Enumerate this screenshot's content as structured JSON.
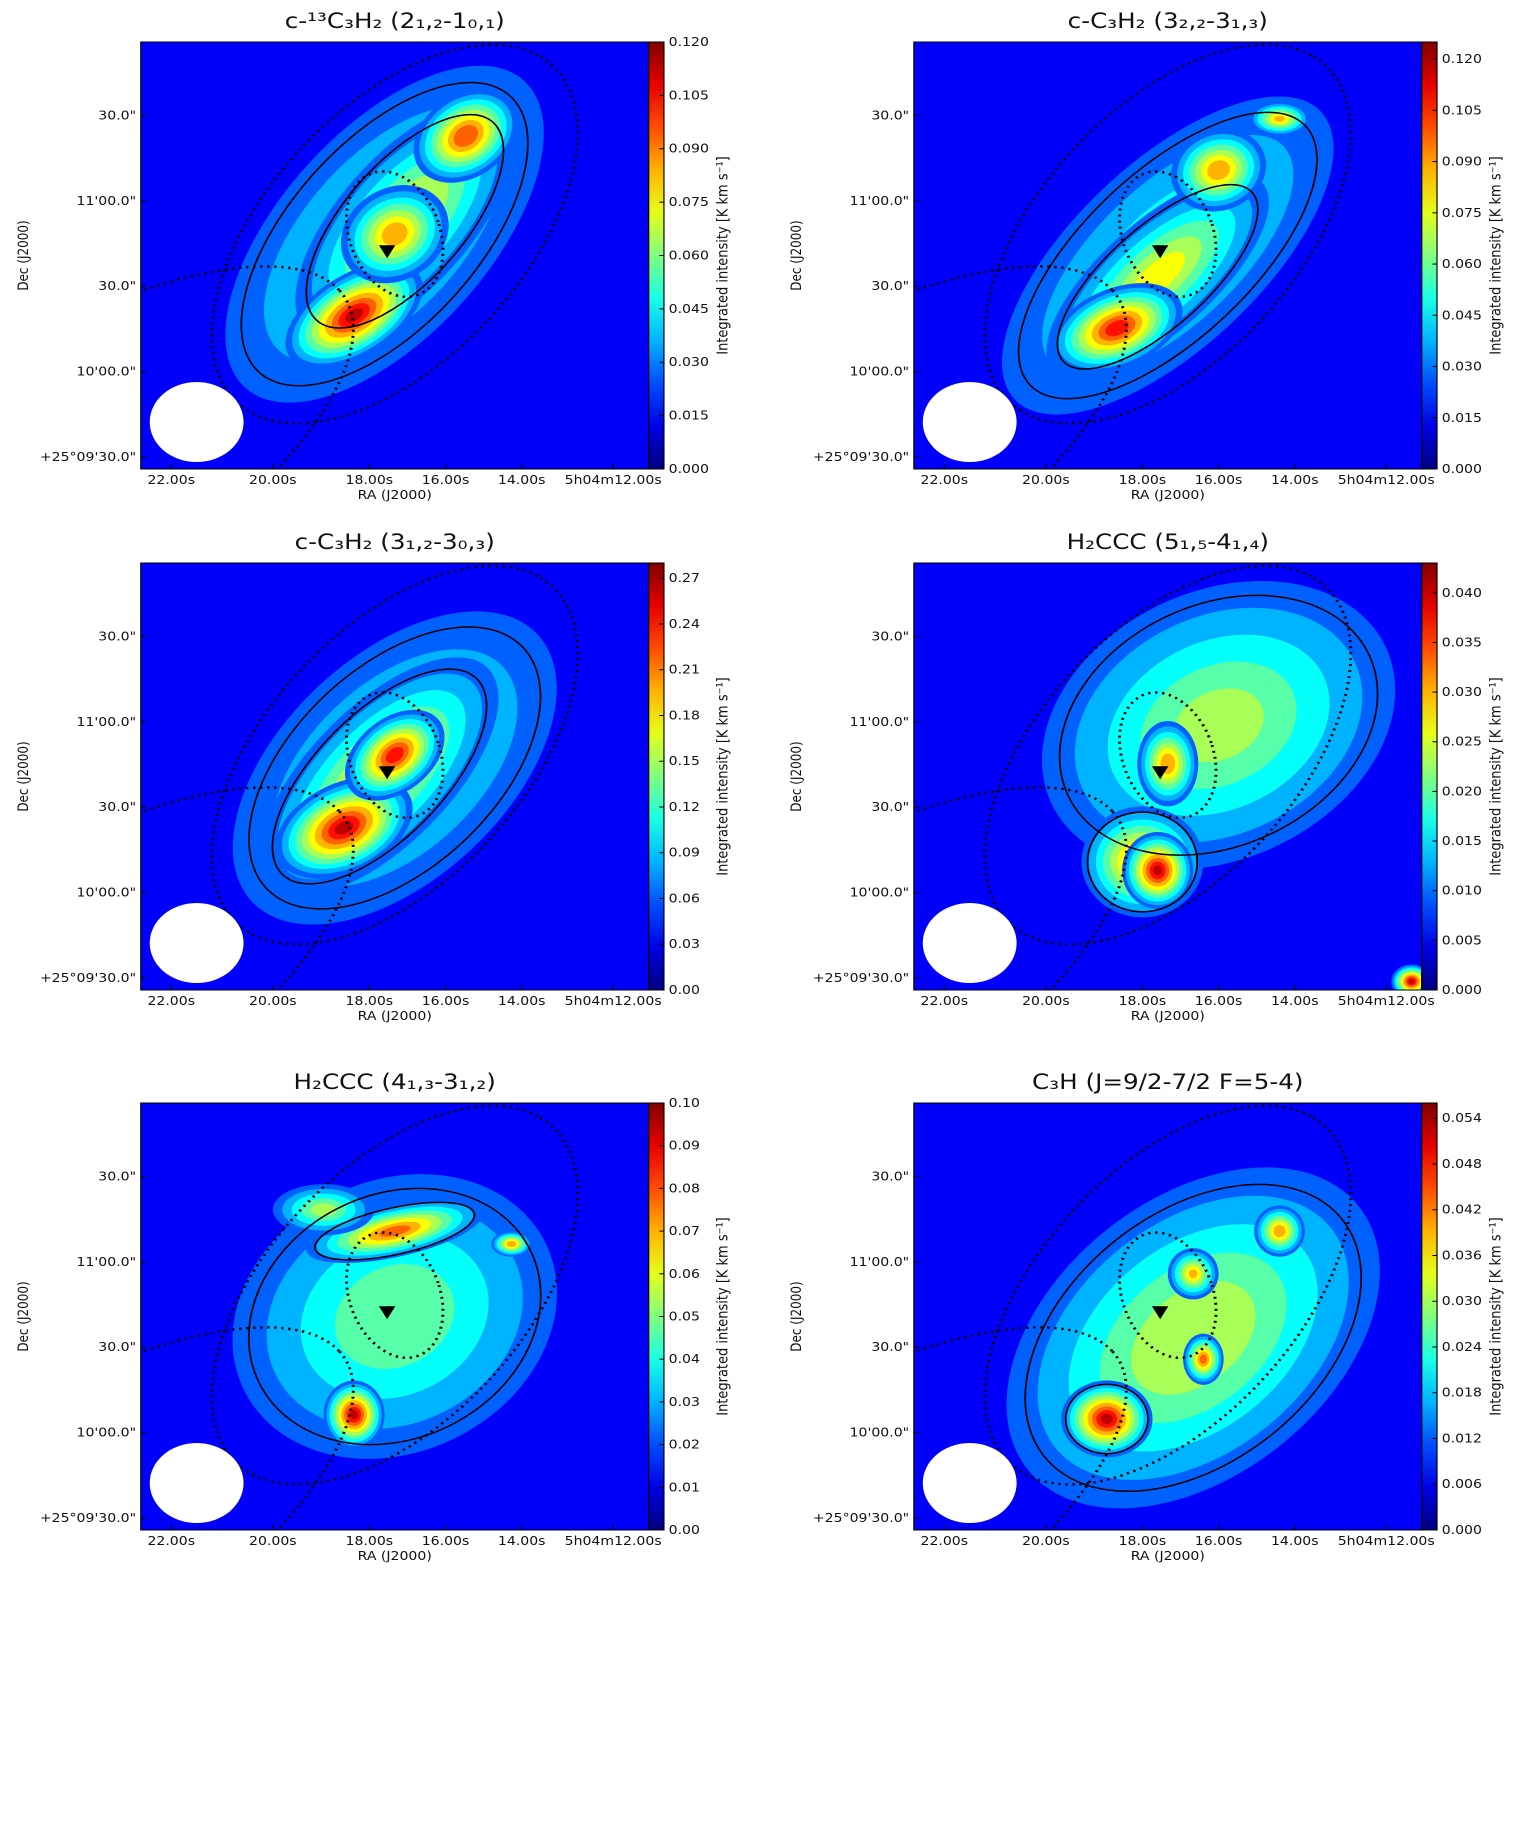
{
  "chart_data": [
    {
      "type": "heatmap",
      "title": "c-¹³C₃H₂ (2₁,₂-1₀,₁)",
      "xlabel": "RA (J2000)",
      "ylabel": "Dec (J2000)",
      "xticks": [
        "22.00s",
        "20.00s",
        "18.00s",
        "16.00s",
        "14.00s",
        "5h04m12.00s"
      ],
      "yticks": [
        "+25°09'30.0\"",
        "10'00.0\"",
        "30.0\"",
        "11'00.0\"",
        "30.0\""
      ],
      "colorbar_label": "Integrated intensity [K km s⁻¹]",
      "clim": [
        0,
        0.12
      ],
      "cticks": [
        {
          "value": 0,
          "label": "0.000"
        },
        {
          "value": 0.015,
          "label": "0.015"
        },
        {
          "value": 0.03,
          "label": "0.030"
        },
        {
          "value": 0.045,
          "label": "0.045"
        },
        {
          "value": 0.06,
          "label": "0.060"
        },
        {
          "value": 0.075,
          "label": "0.075"
        },
        {
          "value": 0.09,
          "label": "0.090"
        },
        {
          "value": 0.105,
          "label": "0.105"
        },
        {
          "value": 0.12,
          "label": "0.120"
        }
      ]
    },
    {
      "type": "heatmap",
      "title": "c-C₃H₂ (3₂,₂-3₁,₃)",
      "xlabel": "RA (J2000)",
      "ylabel": "Dec (J2000)",
      "xticks": [
        "22.00s",
        "20.00s",
        "18.00s",
        "16.00s",
        "14.00s",
        "5h04m12.00s"
      ],
      "yticks": [
        "+25°09'30.0\"",
        "10'00.0\"",
        "30.0\"",
        "11'00.0\"",
        "30.0\""
      ],
      "colorbar_label": "Integrated intensity [K km s⁻¹]",
      "clim": [
        0,
        0.125
      ],
      "cticks": [
        {
          "value": 0,
          "label": "0.000"
        },
        {
          "value": 0.015,
          "label": "0.015"
        },
        {
          "value": 0.03,
          "label": "0.030"
        },
        {
          "value": 0.045,
          "label": "0.045"
        },
        {
          "value": 0.06,
          "label": "0.060"
        },
        {
          "value": 0.075,
          "label": "0.075"
        },
        {
          "value": 0.09,
          "label": "0.090"
        },
        {
          "value": 0.105,
          "label": "0.105"
        },
        {
          "value": 0.12,
          "label": "0.120"
        }
      ]
    },
    {
      "type": "heatmap",
      "title": "c-C₃H₂ (3₁,₂-3₀,₃)",
      "xlabel": "RA (J2000)",
      "ylabel": "Dec (J2000)",
      "xticks": [
        "22.00s",
        "20.00s",
        "18.00s",
        "16.00s",
        "14.00s",
        "5h04m12.00s"
      ],
      "yticks": [
        "+25°09'30.0\"",
        "10'00.0\"",
        "30.0\"",
        "11'00.0\"",
        "30.0\""
      ],
      "colorbar_label": "Integrated intensity [K km s⁻¹]",
      "clim": [
        0,
        0.28
      ],
      "cticks": [
        {
          "value": 0,
          "label": "0.00"
        },
        {
          "value": 0.03,
          "label": "0.03"
        },
        {
          "value": 0.06,
          "label": "0.06"
        },
        {
          "value": 0.09,
          "label": "0.09"
        },
        {
          "value": 0.12,
          "label": "0.12"
        },
        {
          "value": 0.15,
          "label": "0.15"
        },
        {
          "value": 0.18,
          "label": "0.18"
        },
        {
          "value": 0.21,
          "label": "0.21"
        },
        {
          "value": 0.24,
          "label": "0.24"
        },
        {
          "value": 0.27,
          "label": "0.27"
        }
      ]
    },
    {
      "type": "heatmap",
      "title": "H₂CCC (5₁,₅-4₁,₄)",
      "xlabel": "RA (J2000)",
      "ylabel": "Dec (J2000)",
      "xticks": [
        "22.00s",
        "20.00s",
        "18.00s",
        "16.00s",
        "14.00s",
        "5h04m12.00s"
      ],
      "yticks": [
        "+25°09'30.0\"",
        "10'00.0\"",
        "30.0\"",
        "11'00.0\"",
        "30.0\""
      ],
      "colorbar_label": "Integrated intensity [K km s⁻¹]",
      "clim": [
        0,
        0.043
      ],
      "cticks": [
        {
          "value": 0,
          "label": "0.000"
        },
        {
          "value": 0.005,
          "label": "0.005"
        },
        {
          "value": 0.01,
          "label": "0.010"
        },
        {
          "value": 0.015,
          "label": "0.015"
        },
        {
          "value": 0.02,
          "label": "0.020"
        },
        {
          "value": 0.025,
          "label": "0.025"
        },
        {
          "value": 0.03,
          "label": "0.030"
        },
        {
          "value": 0.035,
          "label": "0.035"
        },
        {
          "value": 0.04,
          "label": "0.040"
        }
      ]
    },
    {
      "type": "heatmap",
      "title": "H₂CCC (4₁,₃-3₁,₂)",
      "xlabel": "RA (J2000)",
      "ylabel": "Dec (J2000)",
      "xticks": [
        "22.00s",
        "20.00s",
        "18.00s",
        "16.00s",
        "14.00s",
        "5h04m12.00s"
      ],
      "yticks": [
        "+25°09'30.0\"",
        "10'00.0\"",
        "30.0\"",
        "11'00.0\"",
        "30.0\""
      ],
      "colorbar_label": "Integrated intensity [K km s⁻¹]",
      "clim": [
        0,
        0.1
      ],
      "cticks": [
        {
          "value": 0,
          "label": "0.00"
        },
        {
          "value": 0.01,
          "label": "0.01"
        },
        {
          "value": 0.02,
          "label": "0.02"
        },
        {
          "value": 0.03,
          "label": "0.03"
        },
        {
          "value": 0.04,
          "label": "0.04"
        },
        {
          "value": 0.05,
          "label": "0.05"
        },
        {
          "value": 0.06,
          "label": "0.06"
        },
        {
          "value": 0.07,
          "label": "0.07"
        },
        {
          "value": 0.08,
          "label": "0.08"
        },
        {
          "value": 0.09,
          "label": "0.09"
        },
        {
          "value": 0.1,
          "label": "0.10"
        }
      ]
    },
    {
      "type": "heatmap",
      "title": "C₃H (J=9/2-7/2 F=5-4)",
      "xlabel": "RA (J2000)",
      "ylabel": "Dec (J2000)",
      "xticks": [
        "22.00s",
        "20.00s",
        "18.00s",
        "16.00s",
        "14.00s",
        "5h04m12.00s"
      ],
      "yticks": [
        "+25°09'30.0\"",
        "10'00.0\"",
        "30.0\"",
        "11'00.0\"",
        "30.0\""
      ],
      "colorbar_label": "Integrated intensity [K km s⁻¹]",
      "clim": [
        0,
        0.056
      ],
      "cticks": [
        {
          "value": 0,
          "label": "0.000"
        },
        {
          "value": 0.006,
          "label": "0.006"
        },
        {
          "value": 0.012,
          "label": "0.012"
        },
        {
          "value": 0.018,
          "label": "0.018"
        },
        {
          "value": 0.024,
          "label": "0.024"
        },
        {
          "value": 0.03,
          "label": "0.030"
        },
        {
          "value": 0.036,
          "label": "0.036"
        },
        {
          "value": 0.042,
          "label": "0.042"
        },
        {
          "value": 0.048,
          "label": "0.048"
        },
        {
          "value": 0.054,
          "label": "0.054"
        }
      ]
    }
  ]
}
